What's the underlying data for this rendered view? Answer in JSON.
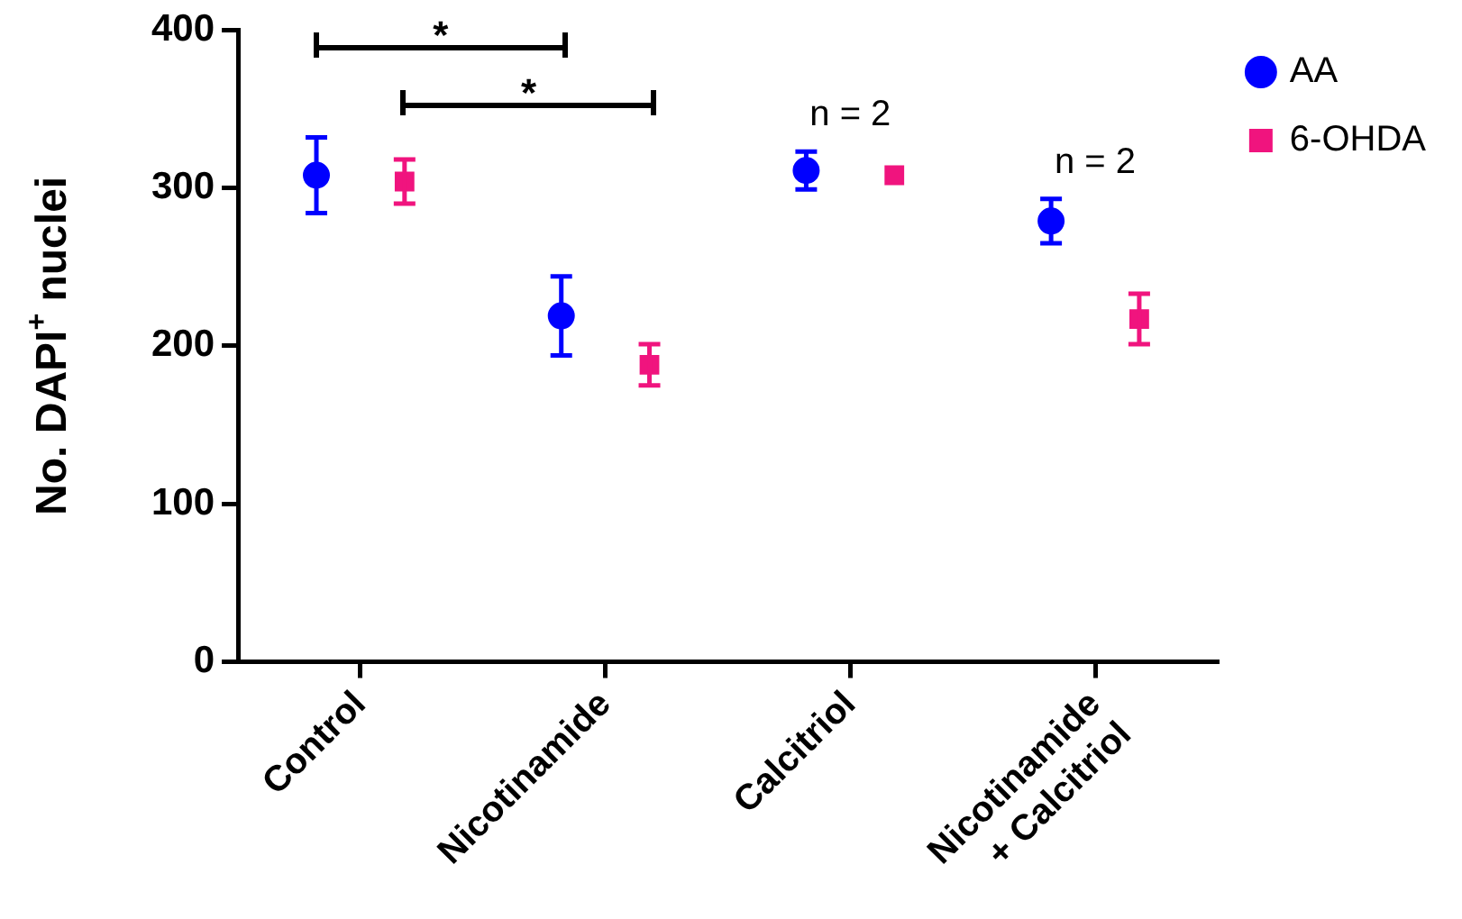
{
  "chart_data": {
    "type": "scatter",
    "ylabel": "No. DAPI$^{+}$ nuclei",
    "categories": [
      "Control",
      "Nicotinamide",
      "Calcitriol",
      "Nicotinamide + Calcitriol"
    ],
    "series": [
      {
        "name": "AA",
        "color": "#0000ff",
        "marker": "circle",
        "values": [
          308,
          219,
          311,
          279
        ],
        "errors": [
          24,
          25,
          12,
          14
        ]
      },
      {
        "name": "6-OHDA",
        "color": "#f0147e",
        "marker": "square",
        "values": [
          304,
          188,
          308,
          217
        ],
        "errors": [
          14,
          13,
          null,
          16
        ]
      }
    ],
    "ylim": [
      0,
      400
    ],
    "yticks": [
      0,
      100,
      200,
      300,
      400
    ],
    "grid": false,
    "legend": "top right",
    "annotations": [
      "*",
      "*",
      "n = 2",
      "n = 2"
    ]
  }
}
